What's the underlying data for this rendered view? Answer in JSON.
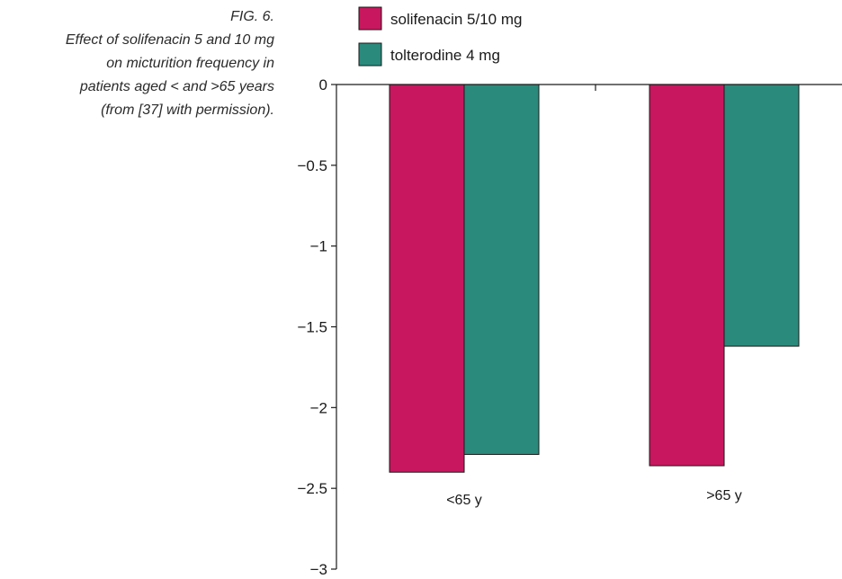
{
  "caption": {
    "fig": "FIG. 6.",
    "lines": [
      "Effect of solifenacin 5 and 10 mg",
      "on micturition frequency in",
      "patients aged < and >65 years",
      "(from [37] with permission)."
    ]
  },
  "chart_data": {
    "type": "bar",
    "title": "",
    "xlabel": "",
    "ylabel": "",
    "categories": [
      "<65 y",
      ">65 y"
    ],
    "series": [
      {
        "name": "solifenacin 5/10 mg",
        "color": "#c8175e",
        "values": [
          -2.4,
          -2.36
        ]
      },
      {
        "name": "tolterodine 4 mg",
        "color": "#2a8a7c",
        "values": [
          -2.29,
          -1.62
        ]
      }
    ],
    "ylim": [
      -3,
      0
    ],
    "yticks": [
      0,
      -0.5,
      -1,
      -1.5,
      -2,
      -2.5,
      -3
    ],
    "ytick_labels": [
      "0",
      "−0.5",
      "−1",
      "−1.5",
      "−2",
      "−2.5",
      "−3"
    ],
    "grid": false,
    "legend_position": "top"
  }
}
